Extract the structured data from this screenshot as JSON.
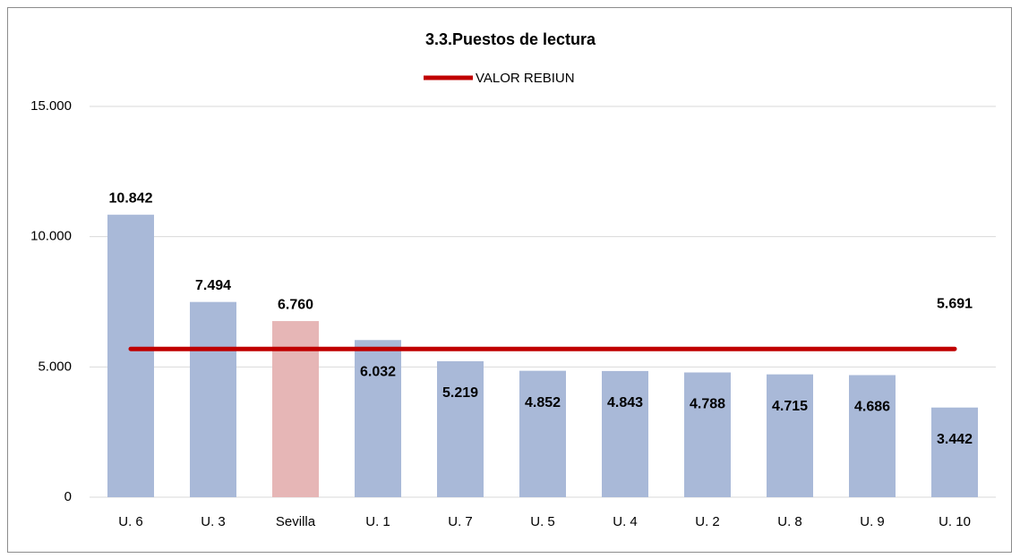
{
  "chart_data": {
    "type": "bar",
    "title": "3.3.Puestos de lectura",
    "categories": [
      "U. 6",
      "U. 3",
      "Sevilla",
      "U. 1",
      "U. 7",
      "U. 5",
      "U. 4",
      "U. 2",
      "U. 8",
      "U. 9",
      "U. 10"
    ],
    "series": [
      {
        "type": "bar",
        "values": [
          10842,
          7494,
          6760,
          6032,
          5219,
          4852,
          4843,
          4788,
          4715,
          4686,
          3442
        ],
        "value_labels": [
          "10.842",
          "7.494",
          "6.760",
          "6.032",
          "5.219",
          "4.852",
          "4.843",
          "4.788",
          "4.715",
          "4.686",
          "3.442"
        ],
        "colors": [
          "#a9b9d8",
          "#a9b9d8",
          "#e6b6b6",
          "#a9b9d8",
          "#a9b9d8",
          "#a9b9d8",
          "#a9b9d8",
          "#a9b9d8",
          "#a9b9d8",
          "#a9b9d8",
          "#a9b9d8"
        ]
      },
      {
        "type": "line",
        "name": "VALOR REBIUN",
        "color": "#c00000",
        "values": [
          5691,
          5691,
          5691,
          5691,
          5691,
          5691,
          5691,
          5691,
          5691,
          5691,
          5691
        ],
        "value_labels": [
          null,
          null,
          null,
          null,
          null,
          null,
          null,
          null,
          null,
          null,
          "5.691"
        ]
      }
    ],
    "ylim": [
      0,
      15000
    ],
    "yticks": [
      0,
      {
        "value": 5000,
        "label": "5.000"
      },
      {
        "value": 10000,
        "label": "10.000"
      },
      {
        "value": 15000,
        "label": "15.000"
      }
    ],
    "grid": true,
    "legend": "top"
  }
}
